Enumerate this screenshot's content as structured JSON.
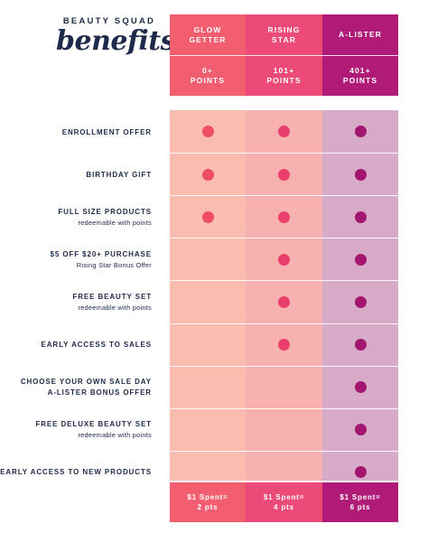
{
  "brand": {
    "top_text": "BEAUTY SQUAD",
    "script_text": "benefits"
  },
  "tiers": [
    {
      "name": "GLOW\nGETTER",
      "points": "0+\nPOINTS",
      "earn": "$1 Spent=\n2 pts"
    },
    {
      "name": "RISING\nSTAR",
      "points": "101+\nPOINTS",
      "earn": "$1 Spent=\n4 pts"
    },
    {
      "name": "A-LISTER",
      "points": "401+\nPOINTS",
      "earn": "$1 Spent=\n6 pts"
    }
  ],
  "benefits": [
    {
      "title": "ENROLLMENT OFFER",
      "subtitle": "",
      "tiers": [
        true,
        true,
        true
      ]
    },
    {
      "title": "BIRTHDAY GIFT",
      "subtitle": "",
      "tiers": [
        true,
        true,
        true
      ]
    },
    {
      "title": "FULL SIZE PRODUCTS",
      "subtitle": "redeemable with points",
      "tiers": [
        true,
        true,
        true
      ]
    },
    {
      "title": "$5 OFF $20+ PURCHASE",
      "subtitle": "Rising Star Bonus Offer",
      "tiers": [
        false,
        true,
        true
      ]
    },
    {
      "title": "FREE BEAUTY SET",
      "subtitle": "redeemable with points",
      "tiers": [
        false,
        true,
        true
      ]
    },
    {
      "title": "EARLY ACCESS TO SALES",
      "subtitle": "",
      "tiers": [
        false,
        true,
        true
      ]
    },
    {
      "title": "CHOOSE YOUR OWN SALE DAY\nA-LISTER BONUS OFFER",
      "subtitle": "",
      "tiers": [
        false,
        false,
        true
      ]
    },
    {
      "title": "FREE DELUXE BEAUTY SET",
      "subtitle": "redeemable with points",
      "tiers": [
        false,
        false,
        true
      ]
    },
    {
      "title": "EARLY ACCESS TO NEW PRODUCTS",
      "subtitle": "",
      "tiers": [
        false,
        false,
        true
      ]
    }
  ],
  "colors": {
    "glow_getter": "#f25d6f",
    "rising_star": "#ec4a77",
    "a_lister": "#b01b78",
    "text": "#1e2a4a"
  }
}
